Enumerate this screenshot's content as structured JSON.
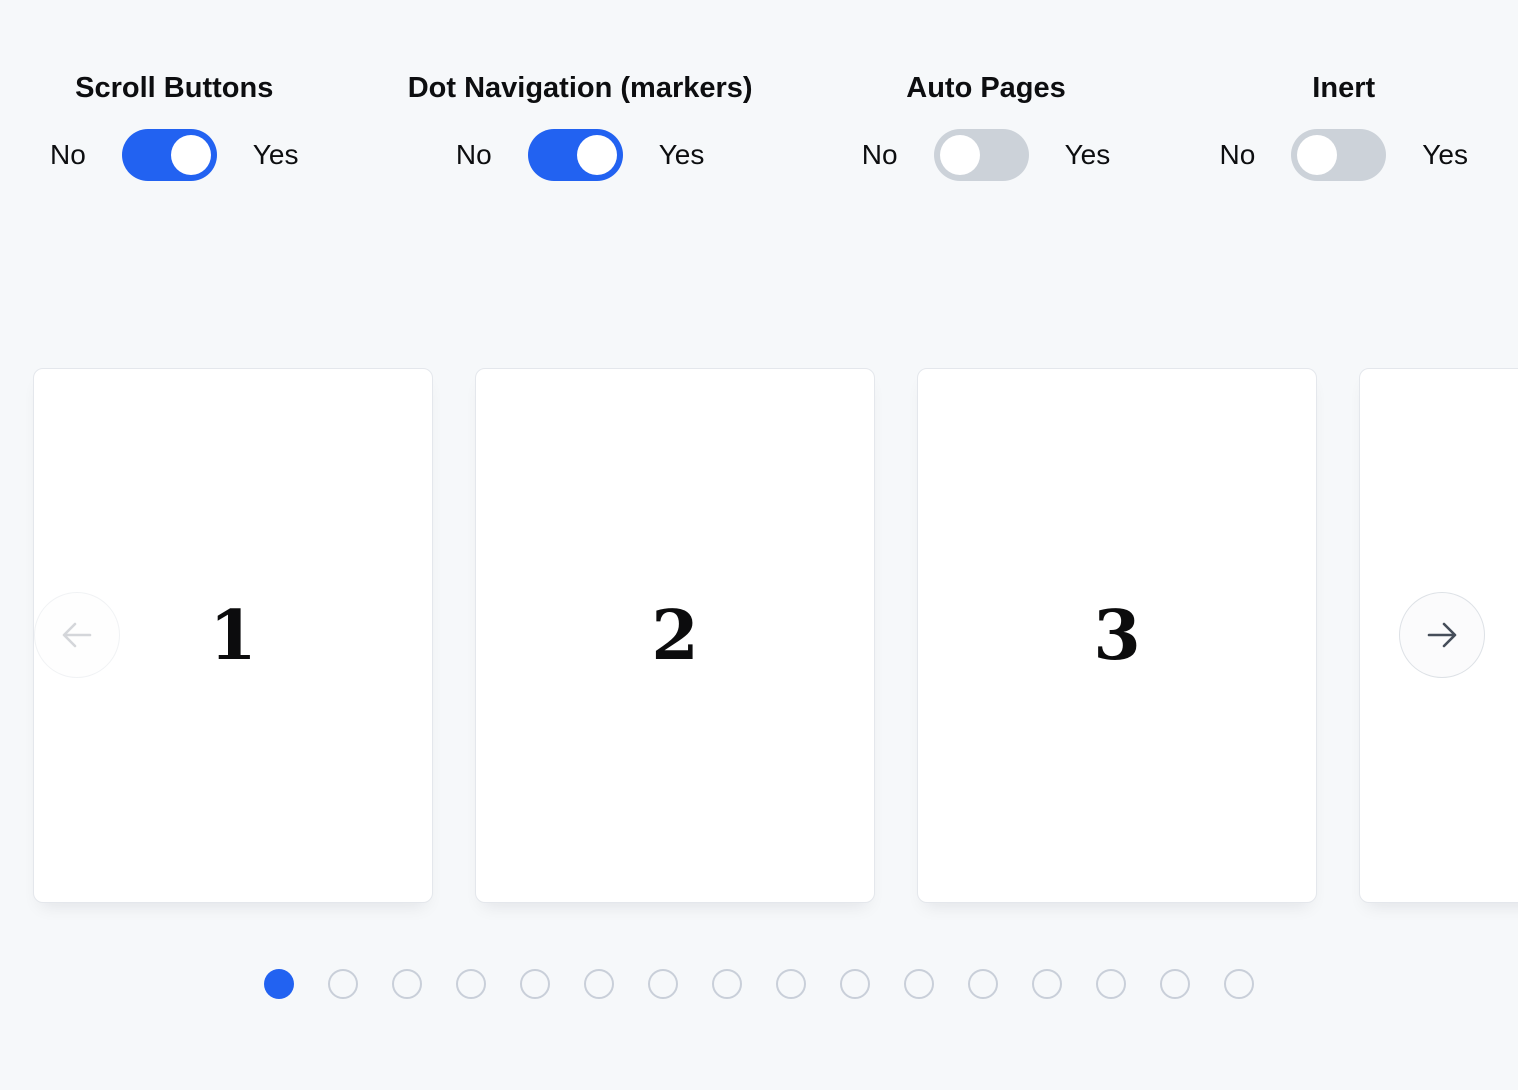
{
  "colors": {
    "accent": "#2262f1",
    "toggle_off": "#ccd2d9",
    "background": "#f6f8fa",
    "dot_inactive_border": "#c9cfd9"
  },
  "controls": {
    "groups": [
      {
        "label": "Scroll Buttons",
        "no_label": "No",
        "yes_label": "Yes",
        "state": "on"
      },
      {
        "label": "Dot Navigation (markers)",
        "no_label": "No",
        "yes_label": "Yes",
        "state": "on"
      },
      {
        "label": "Auto Pages",
        "no_label": "No",
        "yes_label": "Yes",
        "state": "off"
      },
      {
        "label": "Inert",
        "no_label": "No",
        "yes_label": "Yes",
        "state": "off"
      }
    ]
  },
  "carousel": {
    "slides": [
      {
        "label": "1"
      },
      {
        "label": "2"
      },
      {
        "label": "3"
      },
      {
        "label": ""
      }
    ],
    "prev_button": {
      "icon": "arrow-left-icon",
      "disabled": true
    },
    "next_button": {
      "icon": "arrow-right-icon",
      "disabled": false
    },
    "dots": {
      "count": 16,
      "active_index": 0
    }
  }
}
